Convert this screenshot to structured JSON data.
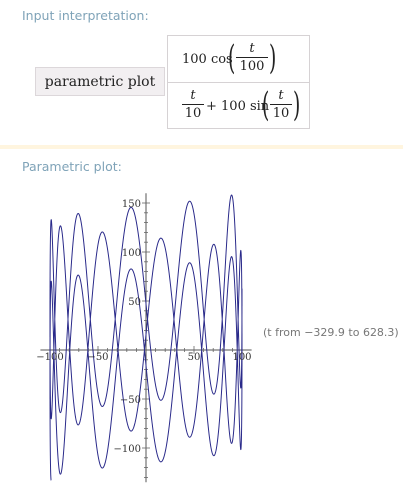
{
  "input_interpretation": {
    "title": "Input interpretation:",
    "label": "parametric plot",
    "x_expr": {
      "coef": "100 cos",
      "num": "t",
      "den": "100"
    },
    "y_expr": {
      "lead_num": "t",
      "lead_den": "10",
      "rest": "+ 100 sin",
      "num": "t",
      "den": "10"
    }
  },
  "plot": {
    "title": "Parametric plot:",
    "range_note": "(t from −329.9 to 628.3)"
  },
  "chart_data": {
    "type": "line",
    "title": "Parametric plot",
    "x_equation": "100 cos(t/100)",
    "y_equation": "t/10 + 100 sin(t/10)",
    "t_range": [
      -329.9,
      628.3
    ],
    "xlim": [
      -110,
      110
    ],
    "ylim": [
      -135,
      160
    ],
    "x_ticks": [
      -100,
      -50,
      50,
      100
    ],
    "x_tick_labels": [
      "−100",
      "−50",
      "50",
      "100"
    ],
    "y_ticks": [
      -100,
      -50,
      50,
      100,
      150
    ],
    "y_tick_labels": [
      "−100",
      "−50",
      "50",
      "100",
      "150"
    ],
    "line_color": "#2a2a8a"
  }
}
